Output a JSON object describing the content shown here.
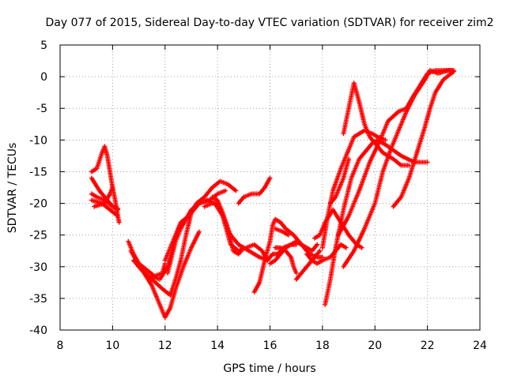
{
  "chart_data": {
    "type": "scatter",
    "title": "Day 077 of 2015, Sidereal Day-to-day VTEC variation (SDTVAR) for receiver zim2",
    "xlabel": "GPS time / hours",
    "ylabel": "SDTVAR / TECUs",
    "xlim": [
      8,
      24
    ],
    "ylim": [
      -40,
      5
    ],
    "xticks": [
      "8",
      "10",
      "12",
      "14",
      "16",
      "18",
      "20",
      "22",
      "24"
    ],
    "yticks": [
      "5",
      "0",
      "-5",
      "-10",
      "-15",
      "-20",
      "-25",
      "-30",
      "-35",
      "-40"
    ],
    "grid": true,
    "marker_color": "#ff0000",
    "marker": "plus",
    "series": [
      {
        "points": [
          [
            9.2,
            -15.0
          ],
          [
            9.4,
            -14.5
          ],
          [
            9.6,
            -12.0
          ],
          [
            9.7,
            -11.0
          ],
          [
            9.8,
            -12.5
          ],
          [
            9.9,
            -15.0
          ],
          [
            10.0,
            -17.5
          ],
          [
            10.1,
            -19.5
          ],
          [
            10.2,
            -22.0
          ],
          [
            10.25,
            -23.0
          ]
        ]
      },
      {
        "points": [
          [
            9.2,
            -16.0
          ],
          [
            9.5,
            -18.0
          ],
          [
            9.8,
            -19.5
          ],
          [
            10.0,
            -20.5
          ],
          [
            10.2,
            -21.0
          ]
        ]
      },
      {
        "points": [
          [
            9.2,
            -18.5
          ],
          [
            9.4,
            -19.0
          ],
          [
            9.7,
            -19.5
          ],
          [
            10.0,
            -20.5
          ],
          [
            10.2,
            -20.8
          ]
        ]
      },
      {
        "points": [
          [
            9.2,
            -19.5
          ],
          [
            9.6,
            -20.0
          ],
          [
            9.9,
            -21.0
          ],
          [
            10.2,
            -22.0
          ]
        ]
      },
      {
        "points": [
          [
            9.3,
            -20.5
          ],
          [
            9.7,
            -20.0
          ],
          [
            9.9,
            -18.5
          ],
          [
            10.0,
            -17.5
          ]
        ]
      },
      {
        "points": [
          [
            10.6,
            -26.0
          ],
          [
            10.8,
            -28.0
          ],
          [
            11.0,
            -29.5
          ],
          [
            11.3,
            -30.5
          ],
          [
            11.6,
            -31.5
          ],
          [
            11.9,
            -31.0
          ],
          [
            12.0,
            -29.5
          ]
        ]
      },
      {
        "points": [
          [
            10.7,
            -27.5
          ],
          [
            10.9,
            -29.0
          ],
          [
            11.2,
            -31.0
          ],
          [
            11.5,
            -33.0
          ],
          [
            11.8,
            -36.0
          ],
          [
            12.0,
            -38.0
          ],
          [
            12.2,
            -36.5
          ],
          [
            12.4,
            -33.5
          ],
          [
            12.7,
            -30.0
          ],
          [
            13.0,
            -27.0
          ],
          [
            13.3,
            -24.5
          ]
        ]
      },
      {
        "points": [
          [
            10.8,
            -29.0
          ],
          [
            11.1,
            -30.5
          ],
          [
            11.5,
            -32.0
          ],
          [
            11.9,
            -33.5
          ],
          [
            12.2,
            -34.5
          ],
          [
            12.4,
            -32.0
          ],
          [
            12.6,
            -29.0
          ],
          [
            12.8,
            -25.0
          ],
          [
            13.0,
            -21.5
          ],
          [
            13.2,
            -20.0
          ],
          [
            13.5,
            -19.0
          ],
          [
            13.8,
            -17.5
          ],
          [
            14.1,
            -16.5
          ],
          [
            14.4,
            -17.0
          ],
          [
            14.7,
            -18.0
          ]
        ]
      },
      {
        "points": [
          [
            11.5,
            -31.5
          ],
          [
            11.8,
            -32.0
          ],
          [
            12.1,
            -30.0
          ],
          [
            12.3,
            -27.0
          ],
          [
            12.5,
            -24.0
          ],
          [
            12.8,
            -22.5
          ],
          [
            13.0,
            -21.0
          ],
          [
            13.3,
            -20.0
          ],
          [
            13.7,
            -19.5
          ],
          [
            14.0,
            -18.5
          ],
          [
            14.3,
            -18.0
          ]
        ]
      },
      {
        "points": [
          [
            12.0,
            -29.0
          ],
          [
            12.2,
            -27.0
          ],
          [
            12.4,
            -25.0
          ],
          [
            12.6,
            -23.0
          ],
          [
            12.9,
            -22.0
          ]
        ]
      },
      {
        "points": [
          [
            12.1,
            -31.0
          ],
          [
            12.4,
            -26.0
          ],
          [
            12.6,
            -24.0
          ],
          [
            12.8,
            -22.5
          ],
          [
            13.0,
            -21.5
          ],
          [
            13.3,
            -20.0
          ],
          [
            13.6,
            -19.5
          ],
          [
            13.9,
            -20.0
          ],
          [
            14.2,
            -22.0
          ],
          [
            14.4,
            -25.0
          ],
          [
            14.5,
            -26.5
          ],
          [
            14.8,
            -27.5
          ],
          [
            15.1,
            -27.0
          ],
          [
            15.4,
            -26.5
          ],
          [
            15.7,
            -27.5
          ],
          [
            15.9,
            -29.0
          ]
        ]
      },
      {
        "points": [
          [
            13.8,
            -19.0
          ],
          [
            14.0,
            -19.5
          ],
          [
            14.2,
            -21.5
          ],
          [
            14.4,
            -24.0
          ],
          [
            14.6,
            -27.5
          ],
          [
            14.8,
            -28.0
          ],
          [
            15.0,
            -27.0
          ]
        ]
      },
      {
        "points": [
          [
            13.5,
            -20.5
          ],
          [
            13.8,
            -20.0
          ],
          [
            14.0,
            -20.0
          ],
          [
            14.2,
            -22.0
          ],
          [
            14.5,
            -25.0
          ],
          [
            14.8,
            -26.5
          ],
          [
            15.2,
            -27.5
          ],
          [
            15.6,
            -28.5
          ],
          [
            15.9,
            -29.0
          ],
          [
            16.1,
            -28.0
          ],
          [
            16.3,
            -28.0
          ],
          [
            16.5,
            -27.0
          ],
          [
            16.8,
            -26.5
          ],
          [
            17.0,
            -26.5
          ]
        ]
      },
      {
        "points": [
          [
            14.8,
            -20.0
          ],
          [
            15.0,
            -19.0
          ],
          [
            15.3,
            -18.5
          ],
          [
            15.6,
            -18.5
          ],
          [
            15.8,
            -17.5
          ],
          [
            16.0,
            -16.0
          ]
        ]
      },
      {
        "points": [
          [
            15.4,
            -34.0
          ],
          [
            15.6,
            -32.5
          ],
          [
            15.8,
            -29.0
          ],
          [
            16.0,
            -26.0
          ],
          [
            16.1,
            -23.5
          ],
          [
            16.2,
            -22.5
          ],
          [
            16.4,
            -23.0
          ],
          [
            16.6,
            -24.0
          ],
          [
            16.9,
            -25.0
          ],
          [
            17.2,
            -26.5
          ],
          [
            17.5,
            -28.0
          ],
          [
            17.8,
            -28.5
          ],
          [
            18.0,
            -28.5
          ]
        ]
      },
      {
        "points": [
          [
            16.0,
            -29.5
          ],
          [
            16.2,
            -29.0
          ],
          [
            16.4,
            -28.0
          ],
          [
            16.6,
            -27.0
          ],
          [
            16.8,
            -26.5
          ],
          [
            17.0,
            -26.0
          ],
          [
            17.2,
            -26.5
          ],
          [
            17.4,
            -27.0
          ],
          [
            17.6,
            -27.5
          ],
          [
            17.8,
            -26.5
          ]
        ]
      },
      {
        "points": [
          [
            16.2,
            -27.0
          ],
          [
            16.4,
            -27.0
          ],
          [
            16.6,
            -27.5
          ],
          [
            16.8,
            -28.5
          ],
          [
            16.9,
            -30.0
          ],
          [
            17.0,
            -31.0
          ]
        ]
      },
      {
        "points": [
          [
            16.2,
            -24.0
          ],
          [
            16.5,
            -24.5
          ],
          [
            16.7,
            -25.0
          ]
        ]
      },
      {
        "points": [
          [
            17.0,
            -32.0
          ],
          [
            17.3,
            -30.5
          ],
          [
            17.6,
            -29.0
          ],
          [
            17.8,
            -28.0
          ],
          [
            17.9,
            -27.5
          ]
        ]
      },
      {
        "points": [
          [
            17.4,
            -28.0
          ],
          [
            17.6,
            -29.0
          ],
          [
            17.8,
            -29.5
          ],
          [
            18.0,
            -29.0
          ],
          [
            18.3,
            -28.5
          ],
          [
            18.5,
            -27.5
          ],
          [
            18.7,
            -26.5
          ],
          [
            18.9,
            -27.0
          ]
        ]
      },
      {
        "points": [
          [
            17.7,
            -25.5
          ],
          [
            17.9,
            -25.0
          ],
          [
            18.1,
            -23.0
          ],
          [
            18.4,
            -21.0
          ],
          [
            18.7,
            -23.0
          ],
          [
            19.0,
            -25.0
          ],
          [
            19.3,
            -26.5
          ],
          [
            19.5,
            -27.0
          ]
        ]
      },
      {
        "points": [
          [
            18.1,
            -36.0
          ],
          [
            18.3,
            -32.0
          ],
          [
            18.5,
            -27.0
          ],
          [
            18.8,
            -21.0
          ],
          [
            19.1,
            -16.0
          ],
          [
            19.4,
            -13.0
          ],
          [
            19.7,
            -11.5
          ],
          [
            19.9,
            -10.5
          ],
          [
            20.1,
            -10.0
          ],
          [
            20.5,
            -11.0
          ],
          [
            21.0,
            -12.5
          ],
          [
            21.5,
            -13.5
          ],
          [
            22.0,
            -13.5
          ]
        ]
      },
      {
        "points": [
          [
            18.0,
            -27.0
          ],
          [
            18.2,
            -22.0
          ],
          [
            18.4,
            -18.0
          ],
          [
            18.7,
            -14.5
          ],
          [
            19.0,
            -11.5
          ],
          [
            19.2,
            -9.5
          ],
          [
            19.4,
            -9.0
          ],
          [
            19.6,
            -8.5
          ],
          [
            19.9,
            -9.0
          ],
          [
            20.1,
            -9.5
          ],
          [
            20.4,
            -10.0
          ]
        ]
      },
      {
        "points": [
          [
            18.3,
            -20.0
          ],
          [
            18.5,
            -19.0
          ],
          [
            18.8,
            -16.0
          ],
          [
            19.0,
            -13.0
          ]
        ]
      },
      {
        "points": [
          [
            18.8,
            -9.0
          ],
          [
            19.0,
            -5.0
          ],
          [
            19.2,
            -1.0
          ],
          [
            19.4,
            -4.0
          ],
          [
            19.6,
            -7.5
          ],
          [
            19.8,
            -9.5
          ],
          [
            20.0,
            -10.5
          ],
          [
            20.3,
            -12.0
          ],
          [
            20.7,
            -13.0
          ],
          [
            21.0,
            -14.0
          ],
          [
            21.3,
            -14.0
          ]
        ]
      },
      {
        "points": [
          [
            18.8,
            -30.0
          ],
          [
            19.2,
            -27.5
          ],
          [
            19.6,
            -24.0
          ],
          [
            20.0,
            -20.0
          ],
          [
            20.3,
            -15.0
          ],
          [
            20.6,
            -11.5
          ],
          [
            20.9,
            -8.5
          ],
          [
            21.2,
            -5.5
          ],
          [
            21.5,
            -3.0
          ],
          [
            21.9,
            -0.5
          ],
          [
            22.1,
            1.0
          ],
          [
            22.4,
            0.5
          ],
          [
            22.8,
            1.0
          ],
          [
            23.0,
            1.0
          ]
        ]
      },
      {
        "points": [
          [
            18.6,
            -25.0
          ],
          [
            19.0,
            -22.0
          ],
          [
            19.4,
            -18.0
          ],
          [
            19.8,
            -13.5
          ],
          [
            20.2,
            -10.0
          ],
          [
            20.5,
            -7.0
          ],
          [
            20.9,
            -5.5
          ],
          [
            21.2,
            -5.0
          ],
          [
            21.4,
            -3.5
          ],
          [
            21.7,
            -1.5
          ],
          [
            22.0,
            0.5
          ],
          [
            22.3,
            1.0
          ],
          [
            22.6,
            1.0
          ],
          [
            22.9,
            1.0
          ]
        ]
      },
      {
        "points": [
          [
            20.7,
            -20.5
          ],
          [
            21.0,
            -19.0
          ],
          [
            21.3,
            -16.0
          ],
          [
            21.6,
            -12.0
          ],
          [
            21.9,
            -8.0
          ],
          [
            22.1,
            -5.0
          ],
          [
            22.3,
            -2.5
          ],
          [
            22.6,
            -0.5
          ],
          [
            22.9,
            0.5
          ],
          [
            23.0,
            0.8
          ]
        ]
      }
    ]
  }
}
